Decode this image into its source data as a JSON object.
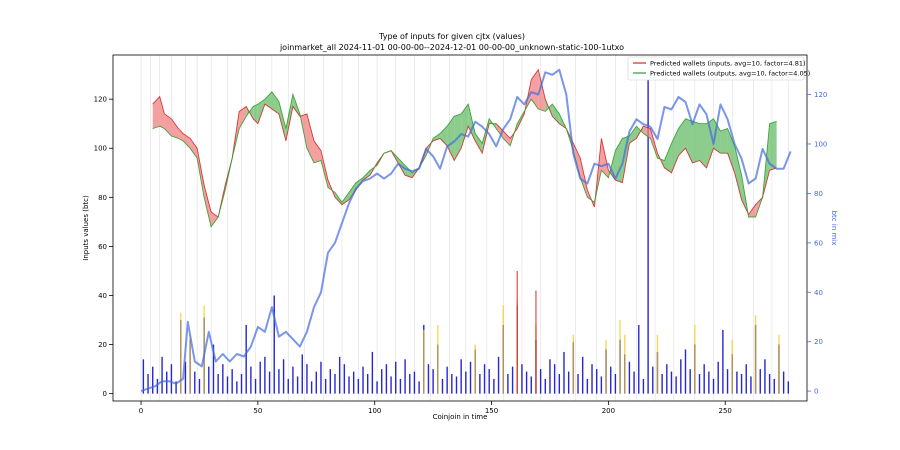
{
  "chart_data": {
    "type": "line",
    "title": "Type of inputs for given cjtx (values)",
    "subtitle": "joinmarket_all 2024-11-01 00-00-00--2024-12-01 00-00-00_unknown-static-100-1utxo",
    "xlabel": "Coinjoin in time",
    "ylabel": "Inputs values (btc)",
    "ylabel_right": "btc in mix",
    "xlim": [
      -12,
      285
    ],
    "ylim": [
      -3,
      138
    ],
    "ylim_right": [
      -4,
      136
    ],
    "x_ticks": [
      "0",
      "50",
      "100",
      "150",
      "200",
      "250"
    ],
    "y_ticks": [
      "0",
      "20",
      "40",
      "60",
      "80",
      "100",
      "120"
    ],
    "y_right_ticks": [
      "0",
      "20",
      "40",
      "60",
      "80",
      "100",
      "120"
    ],
    "legend": {
      "position": "top-right",
      "entries": [
        "Predicted wallets (inputs, avg=10, factor=4.81)",
        "Predicted wallets (outputs, avg=10, factor=4.05)"
      ]
    },
    "colors": {
      "inputs_line": "#d62728",
      "outputs_line": "#2ca02c",
      "inputs_fill": "#f08080",
      "outputs_fill": "#66bb66",
      "btc_in_mix": "#4169e1",
      "bars_blue": "#0000cd",
      "bars_yellow": "#f5c518",
      "bars_red": "#d62728",
      "vertical_markers": "#d9d9d9"
    },
    "series": [
      {
        "name": "Predicted wallets (inputs, avg=10, factor=4.81)",
        "x": [
          5,
          8,
          10,
          13,
          16,
          18,
          21,
          24,
          27,
          30,
          33,
          36,
          39,
          42,
          45,
          48,
          50,
          53,
          56,
          59,
          62,
          65,
          68,
          71,
          74,
          77,
          80,
          83,
          86,
          89,
          92,
          95,
          98,
          101,
          104,
          107,
          110,
          113,
          116,
          119,
          122,
          125,
          128,
          131,
          134,
          137,
          140,
          143,
          146,
          149,
          152,
          155,
          158,
          161,
          164,
          167,
          170,
          173,
          176,
          179,
          182,
          185,
          188,
          191,
          194,
          197,
          200,
          203,
          206,
          209,
          212,
          215,
          218,
          221,
          224,
          227,
          230,
          233,
          236,
          239,
          242,
          245,
          248,
          251,
          254,
          257,
          260,
          263,
          266,
          269,
          272
        ],
        "values": [
          118,
          121,
          114,
          112,
          108,
          106,
          104,
          100,
          85,
          74,
          72,
          85,
          96,
          115,
          117,
          112,
          110,
          118,
          116,
          114,
          103,
          117,
          113,
          114,
          103,
          99,
          87,
          80,
          77,
          79,
          83,
          87,
          89,
          94,
          98,
          99,
          94,
          89,
          88,
          92,
          100,
          103,
          104,
          101,
          95,
          100,
          109,
          103,
          98,
          110,
          110,
          107,
          104,
          108,
          114,
          128,
          132,
          120,
          113,
          110,
          108,
          102,
          96,
          83,
          76,
          104,
          91,
          87,
          86,
          102,
          104,
          109,
          108,
          98,
          92,
          90,
          97,
          100,
          94,
          95,
          92,
          100,
          98,
          98,
          90,
          79,
          73,
          77,
          80,
          91,
          92
        ]
      },
      {
        "name": "Predicted wallets (outputs, avg=10, factor=4.05)",
        "x": [
          5,
          8,
          10,
          13,
          16,
          18,
          21,
          24,
          27,
          30,
          33,
          36,
          39,
          42,
          45,
          48,
          50,
          53,
          56,
          59,
          62,
          65,
          68,
          71,
          74,
          77,
          80,
          83,
          86,
          89,
          92,
          95,
          98,
          101,
          104,
          107,
          110,
          113,
          116,
          119,
          122,
          125,
          128,
          131,
          134,
          137,
          140,
          143,
          146,
          149,
          152,
          155,
          158,
          161,
          164,
          167,
          170,
          173,
          176,
          179,
          182,
          185,
          188,
          191,
          194,
          197,
          200,
          203,
          206,
          209,
          212,
          215,
          218,
          221,
          224,
          227,
          230,
          233,
          236,
          239,
          242,
          245,
          248,
          251,
          254,
          257,
          260,
          263,
          266,
          269,
          272
        ],
        "values": [
          108,
          109,
          108,
          105,
          104,
          103,
          100,
          96,
          80,
          68,
          72,
          83,
          96,
          108,
          113,
          117,
          118,
          120,
          123,
          119,
          108,
          122,
          114,
          100,
          94,
          95,
          84,
          82,
          78,
          82,
          86,
          88,
          91,
          93,
          98,
          99,
          96,
          93,
          90,
          92,
          97,
          104,
          106,
          109,
          113,
          114,
          118,
          106,
          102,
          112,
          108,
          104,
          101,
          110,
          115,
          120,
          116,
          115,
          118,
          114,
          108,
          99,
          88,
          80,
          78,
          91,
          88,
          99,
          104,
          105,
          109,
          106,
          104,
          96,
          95,
          102,
          108,
          112,
          111,
          110,
          110,
          112,
          107,
          108,
          101,
          89,
          72,
          72,
          80,
          110,
          111
        ]
      },
      {
        "name": "",
        "x": [
          0,
          3,
          6,
          9,
          12,
          15,
          18,
          20,
          23,
          26,
          29,
          32,
          35,
          38,
          41,
          44,
          47,
          50,
          53,
          56,
          59,
          62,
          65,
          68,
          71,
          74,
          77,
          80,
          83,
          86,
          89,
          92,
          95,
          98,
          101,
          104,
          107,
          110,
          113,
          116,
          119,
          122,
          125,
          128,
          131,
          134,
          137,
          140,
          143,
          146,
          149,
          152,
          155,
          158,
          161,
          164,
          167,
          170,
          173,
          176,
          179,
          182,
          185,
          188,
          191,
          194,
          197,
          200,
          203,
          206,
          209,
          212,
          215,
          218,
          221,
          224,
          227,
          230,
          233,
          236,
          239,
          242,
          245,
          248,
          251,
          254,
          257,
          260,
          263,
          266,
          269,
          272,
          275,
          278
        ],
        "values": [
          0,
          1,
          2,
          4,
          4,
          3,
          5,
          28,
          12,
          10,
          24,
          12,
          15,
          12,
          15,
          14,
          18,
          26,
          24,
          34,
          22,
          24,
          21,
          18,
          24,
          34,
          40,
          56,
          60,
          68,
          76,
          82,
          85,
          86,
          88,
          86,
          88,
          92,
          90,
          89,
          90,
          98,
          95,
          90,
          99,
          101,
          104,
          103,
          109,
          107,
          104,
          99,
          106,
          110,
          119,
          116,
          121,
          120,
          129,
          128,
          130,
          120,
          96,
          86,
          84,
          92,
          91,
          92,
          86,
          92,
          105,
          110,
          108,
          107,
          102,
          115,
          114,
          119,
          117,
          108,
          116,
          112,
          100,
          116,
          110,
          100,
          94,
          84,
          86,
          98,
          92,
          90,
          90,
          97
        ]
      }
    ],
    "bars": {
      "note": "per-coinjoin input value bars",
      "x": [
        1,
        3,
        5,
        7,
        9,
        11,
        13,
        15,
        17,
        19,
        21,
        23,
        25,
        27,
        29,
        31,
        33,
        35,
        37,
        39,
        41,
        43,
        45,
        47,
        49,
        51,
        53,
        55,
        57,
        59,
        61,
        63,
        65,
        67,
        69,
        71,
        73,
        75,
        77,
        79,
        81,
        83,
        85,
        87,
        89,
        91,
        93,
        95,
        97,
        99,
        101,
        103,
        105,
        107,
        109,
        111,
        113,
        115,
        117,
        119,
        121,
        123,
        125,
        127,
        129,
        131,
        133,
        135,
        137,
        139,
        141,
        143,
        145,
        147,
        149,
        151,
        153,
        155,
        157,
        159,
        161,
        163,
        165,
        167,
        169,
        171,
        173,
        175,
        177,
        179,
        181,
        183,
        185,
        187,
        189,
        191,
        193,
        195,
        197,
        199,
        201,
        203,
        205,
        207,
        209,
        211,
        213,
        215,
        217,
        219,
        221,
        223,
        225,
        227,
        229,
        231,
        233,
        235,
        237,
        239,
        241,
        243,
        245,
        247,
        249,
        251,
        253,
        255,
        257,
        259,
        261,
        263,
        265,
        267,
        269,
        271,
        273,
        275,
        277
      ],
      "blue": [
        14,
        8,
        11,
        6,
        15,
        9,
        12,
        5,
        30,
        13,
        22,
        9,
        6,
        31,
        11,
        20,
        8,
        12,
        7,
        10,
        5,
        8,
        28,
        11,
        6,
        13,
        15,
        9,
        40,
        10,
        14,
        6,
        11,
        7,
        16,
        12,
        5,
        9,
        13,
        6,
        10,
        8,
        15,
        12,
        7,
        9,
        6,
        11,
        8,
        17,
        5,
        10,
        12,
        7,
        13,
        6,
        14,
        8,
        9,
        5,
        28,
        12,
        10,
        20,
        6,
        11,
        8,
        7,
        14,
        9,
        13,
        18,
        8,
        12,
        10,
        6,
        15,
        28,
        8,
        11,
        36,
        12,
        9,
        7,
        22,
        10,
        6,
        14,
        12,
        8,
        17,
        9,
        21,
        8,
        15,
        6,
        12,
        10,
        7,
        18,
        11,
        8,
        22,
        16,
        13,
        9,
        28,
        6,
        128,
        11,
        17,
        8,
        12,
        9,
        7,
        14,
        18,
        10,
        20,
        8,
        12,
        9,
        6,
        13,
        26,
        10,
        16,
        9,
        8,
        12,
        7,
        28,
        10,
        14,
        8,
        6,
        20,
        9,
        5
      ],
      "yellow": [
        0,
        0,
        0,
        0,
        0,
        0,
        0,
        0,
        33,
        0,
        24,
        0,
        0,
        36,
        0,
        0,
        0,
        0,
        0,
        0,
        0,
        0,
        0,
        0,
        0,
        0,
        0,
        0,
        0,
        0,
        0,
        0,
        0,
        0,
        0,
        0,
        0,
        0,
        0,
        0,
        0,
        0,
        0,
        0,
        0,
        0,
        0,
        0,
        0,
        0,
        0,
        0,
        0,
        0,
        0,
        0,
        0,
        0,
        0,
        0,
        26,
        0,
        0,
        28,
        0,
        0,
        0,
        0,
        0,
        0,
        0,
        20,
        0,
        0,
        0,
        0,
        0,
        36,
        0,
        0,
        38,
        0,
        0,
        0,
        28,
        0,
        0,
        0,
        0,
        0,
        0,
        0,
        24,
        0,
        0,
        0,
        0,
        0,
        0,
        22,
        0,
        0,
        30,
        24,
        0,
        0,
        0,
        0,
        0,
        0,
        24,
        0,
        0,
        0,
        0,
        0,
        0,
        0,
        28,
        0,
        0,
        0,
        0,
        0,
        0,
        0,
        22,
        0,
        0,
        0,
        0,
        32,
        0,
        0,
        0,
        0,
        24,
        0,
        0
      ],
      "red": [
        0,
        0,
        0,
        0,
        0,
        0,
        0,
        0,
        0,
        0,
        0,
        0,
        0,
        0,
        0,
        0,
        0,
        0,
        0,
        0,
        0,
        0,
        0,
        0,
        0,
        0,
        0,
        0,
        0,
        0,
        0,
        0,
        0,
        0,
        0,
        0,
        0,
        0,
        0,
        0,
        0,
        0,
        0,
        0,
        0,
        0,
        0,
        0,
        0,
        0,
        0,
        0,
        0,
        0,
        0,
        0,
        0,
        0,
        0,
        0,
        0,
        0,
        0,
        0,
        0,
        0,
        0,
        0,
        0,
        0,
        0,
        0,
        0,
        0,
        0,
        0,
        0,
        0,
        0,
        0,
        50,
        0,
        0,
        0,
        42,
        0,
        0,
        0,
        0,
        0,
        0,
        0,
        0,
        0,
        0,
        0,
        0,
        0,
        0,
        0,
        0,
        0,
        0,
        0,
        0,
        0,
        0,
        0,
        0,
        0,
        0,
        0,
        0,
        0,
        0,
        0,
        0,
        0,
        0,
        0,
        0,
        0,
        0,
        0,
        0,
        0,
        0,
        0,
        0,
        0,
        0,
        0,
        0,
        0,
        0,
        0,
        0,
        0,
        0
      ]
    },
    "vertical_markers_x": [
      0,
      4,
      8,
      13,
      19,
      24,
      30,
      37,
      43,
      49,
      56,
      63,
      70,
      78,
      86,
      93,
      101,
      109,
      117,
      124,
      132,
      139,
      148,
      155,
      163,
      171,
      178,
      186,
      195,
      203,
      212,
      220,
      228,
      237,
      245,
      253,
      262,
      270,
      277
    ]
  }
}
